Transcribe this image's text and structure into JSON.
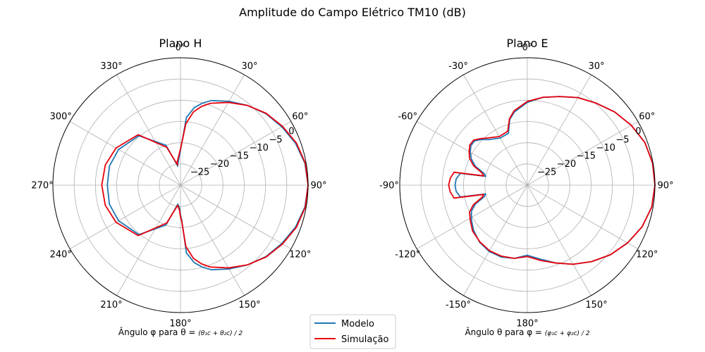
{
  "figure": {
    "title": "Amplitude do Campo Elétrico TM10 (dB)",
    "legend": {
      "placement": "bottom-center",
      "entries": [
        {
          "name": "Modelo",
          "color": "#1f77b4"
        },
        {
          "name": "Simulação",
          "color": "#e8000b"
        }
      ]
    }
  },
  "chart_data": [
    {
      "type": "line",
      "projection": "polar",
      "title": "Plano H",
      "xlabel_prefix": "Ângulo φ para θ =",
      "xlabel_formula": "(θ₁c + θ₂c) / 2",
      "angle_zero": "top",
      "angle_direction": "clockwise",
      "angle_tick_labels": [
        "0°",
        "30°",
        "60°",
        "90°",
        "120°",
        "150°",
        "180°",
        "210°",
        "240°",
        "270°",
        "300°",
        "330°"
      ],
      "radial_tick_labels": [
        "−25",
        "−20",
        "−15",
        "−10",
        "−5",
        "0"
      ],
      "radial_ticks": [
        -25,
        -20,
        -15,
        -10,
        -5,
        0
      ],
      "rlim": [
        -30,
        0
      ],
      "grid": true,
      "series": [
        {
          "name": "Modelo",
          "color": "#1f77b4",
          "theta_deg": [
            -8,
            -2,
            0,
            5,
            10,
            15,
            20,
            30,
            40,
            50,
            60,
            70,
            80,
            90,
            100,
            110,
            120,
            130,
            140,
            150,
            160,
            165,
            170,
            175,
            178,
            180,
            182,
            188,
            200,
            220,
            240,
            255,
            270,
            285,
            300,
            320,
            340,
            352
          ],
          "r_db": [
            -25.2,
            -23.0,
            -21.8,
            -14.0,
            -11.5,
            -10.0,
            -8.8,
            -7.2,
            -5.5,
            -3.8,
            -2.5,
            -1.2,
            -0.3,
            0,
            -0.3,
            -1.2,
            -2.5,
            -3.8,
            -5.5,
            -7.2,
            -8.8,
            -10.0,
            -11.5,
            -14.0,
            -21.8,
            -23.0,
            -24.5,
            -25.5,
            -20.0,
            -14.8,
            -13.2,
            -12.7,
            -12.8,
            -12.7,
            -13.2,
            -14.8,
            -20.0,
            -25.5
          ]
        },
        {
          "name": "Simulação",
          "color": "#e8000b",
          "theta_deg": [
            -8,
            -2,
            0,
            5,
            10,
            15,
            20,
            30,
            40,
            50,
            60,
            70,
            80,
            90,
            100,
            110,
            120,
            130,
            140,
            150,
            160,
            165,
            170,
            175,
            178,
            180,
            182,
            188,
            200,
            220,
            240,
            255,
            270,
            285,
            300,
            320,
            340,
            352
          ],
          "r_db": [
            -24.5,
            -22.5,
            -21.5,
            -15.5,
            -12.5,
            -10.8,
            -9.5,
            -7.5,
            -5.5,
            -3.7,
            -2.3,
            -1.0,
            -0.2,
            0,
            -0.2,
            -1.0,
            -2.3,
            -3.7,
            -5.5,
            -7.5,
            -9.5,
            -10.8,
            -12.5,
            -15.5,
            -21.5,
            -22.5,
            -24.0,
            -25.2,
            -20.5,
            -14.5,
            -12.5,
            -11.7,
            -11.5,
            -11.7,
            -12.5,
            -14.5,
            -20.5,
            -25.2
          ]
        }
      ]
    },
    {
      "type": "line",
      "projection": "polar",
      "title": "Plano E",
      "xlabel_prefix": "Ângulo θ para φ =",
      "xlabel_formula": "(φ₁c + φ₂c) / 2",
      "angle_zero": "top",
      "angle_direction": "clockwise",
      "angle_tick_labels": [
        "0°",
        "30°",
        "60°",
        "90°",
        "120°",
        "150°",
        "180°",
        "-150°",
        "-120°",
        "-90°",
        "-60°",
        "-30°"
      ],
      "radial_tick_labels": [
        "−25",
        "−20",
        "−15",
        "−10",
        "−5",
        "0"
      ],
      "radial_ticks": [
        -25,
        -20,
        -15,
        -10,
        -5,
        0
      ],
      "rlim": [
        -30,
        0
      ],
      "grid": true,
      "series": [
        {
          "name": "Modelo",
          "color": "#1f77b4",
          "theta_deg": [
            -180,
            -170,
            -160,
            -150,
            -140,
            -130,
            -122,
            -115,
            -110,
            -105,
            -102,
            -100,
            -95,
            -90,
            -85,
            -80,
            -78,
            -75,
            -70,
            -65,
            -60,
            -55,
            -50,
            -45,
            -40,
            -30,
            -20,
            -15,
            -10,
            0,
            10,
            20,
            30,
            40,
            50,
            60,
            70,
            80,
            90,
            100,
            110,
            120,
            130,
            140,
            150,
            160,
            170,
            180
          ],
          "r_db": [
            -13.5,
            -12.5,
            -12.0,
            -12.0,
            -12.5,
            -13.5,
            -14.5,
            -15.5,
            -17.0,
            -19.5,
            -20.0,
            -14.0,
            -13.2,
            -13.0,
            -13.2,
            -14.0,
            -20.0,
            -19.5,
            -17.0,
            -15.5,
            -14.5,
            -13.8,
            -13.8,
            -14.8,
            -16.0,
            -17.2,
            -17.0,
            -14.0,
            -12.5,
            -10.5,
            -9.0,
            -7.8,
            -6.2,
            -4.8,
            -3.2,
            -1.8,
            -0.6,
            -0.1,
            0,
            -0.3,
            -1.3,
            -2.8,
            -4.5,
            -6.5,
            -8.5,
            -10.5,
            -12.3,
            -13.5
          ]
        },
        {
          "name": "Simulação",
          "color": "#e8000b",
          "theta_deg": [
            -180,
            -170,
            -160,
            -150,
            -140,
            -130,
            -122,
            -115,
            -110,
            -105,
            -102,
            -100,
            -95,
            -90,
            -85,
            -80,
            -78,
            -75,
            -70,
            -65,
            -60,
            -55,
            -50,
            -45,
            -40,
            -30,
            -20,
            -15,
            -10,
            0,
            10,
            20,
            30,
            40,
            50,
            60,
            70,
            80,
            90,
            100,
            110,
            120,
            130,
            140,
            150,
            160,
            170,
            180
          ],
          "r_db": [
            -13.2,
            -12.5,
            -12.2,
            -12.2,
            -12.6,
            -13.2,
            -14.2,
            -15.0,
            -16.5,
            -19.0,
            -19.5,
            -12.5,
            -11.8,
            -11.5,
            -11.8,
            -12.5,
            -19.5,
            -19.0,
            -16.5,
            -15.0,
            -14.2,
            -13.5,
            -13.5,
            -14.5,
            -15.5,
            -16.8,
            -16.5,
            -13.8,
            -12.2,
            -10.3,
            -9.0,
            -7.8,
            -6.2,
            -4.8,
            -3.2,
            -1.8,
            -0.6,
            -0.1,
            0,
            -0.3,
            -1.3,
            -2.8,
            -4.5,
            -6.5,
            -8.5,
            -10.5,
            -12.0,
            -13.2
          ]
        }
      ]
    }
  ]
}
